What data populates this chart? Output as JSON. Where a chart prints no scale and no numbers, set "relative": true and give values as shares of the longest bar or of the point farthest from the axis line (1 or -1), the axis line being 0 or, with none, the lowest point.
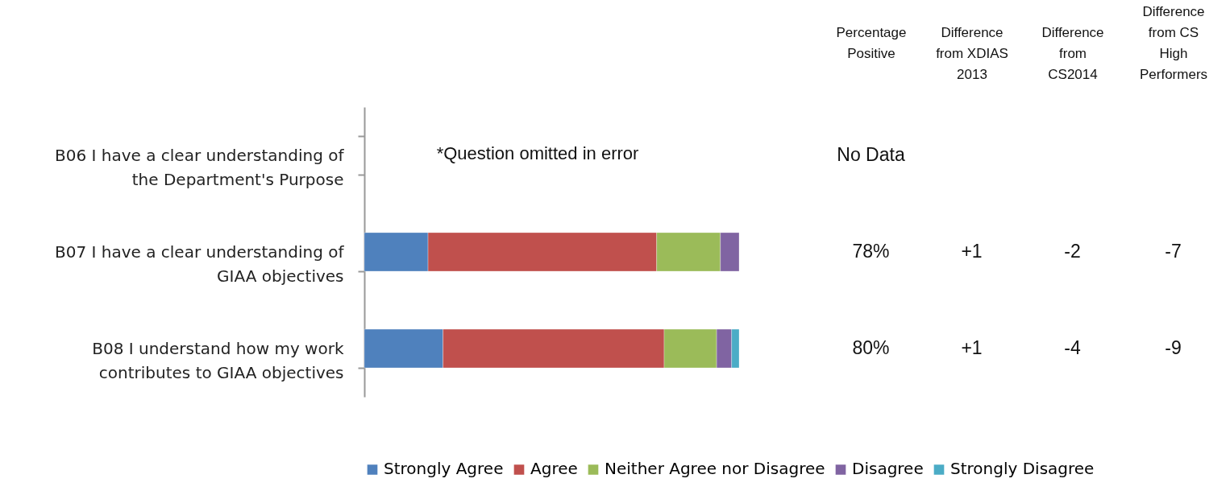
{
  "chart_data": [
    {
      "type": "bar",
      "orientation": "horizontal",
      "stacked": true,
      "relative": true,
      "legend": "bottom",
      "categories": [
        "B06 I have a clear understanding of the Department's Purpose",
        "B07 I have a clear understanding of GIAA objectives",
        "B08 I understand how my work contributes to GIAA objectives"
      ],
      "series": [
        {
          "name": "Strongly Agree",
          "color": "#4f81bd",
          "values": [
            null,
            0.17,
            0.21
          ]
        },
        {
          "name": "Agree",
          "color": "#c0504d",
          "values": [
            null,
            0.61,
            0.59
          ]
        },
        {
          "name": "Neither Agree nor Disagree",
          "color": "#9bbb59",
          "values": [
            null,
            0.17,
            0.14
          ]
        },
        {
          "name": "Disagree",
          "color": "#8064a2",
          "values": [
            null,
            0.05,
            0.04
          ]
        },
        {
          "name": "Strongly Disagree",
          "color": "#4bacc6",
          "values": [
            null,
            null,
            0.02
          ]
        }
      ],
      "annotations": [
        "*Question omitted in error"
      ]
    },
    {
      "type": "other",
      "categories": [
        "Percentage Positive",
        "Difference from XDIAS 2013",
        "Difference from CS2014",
        "Difference from CS High Performers"
      ],
      "cell_labels": [
        [
          "78%",
          "+1",
          "-2",
          "-7"
        ],
        [
          "80%",
          "+1",
          "-4",
          "-9"
        ]
      ],
      "annotations": [
        {
          "text": "No Data",
          "x": "Percentage Positive"
        }
      ]
    }
  ]
}
